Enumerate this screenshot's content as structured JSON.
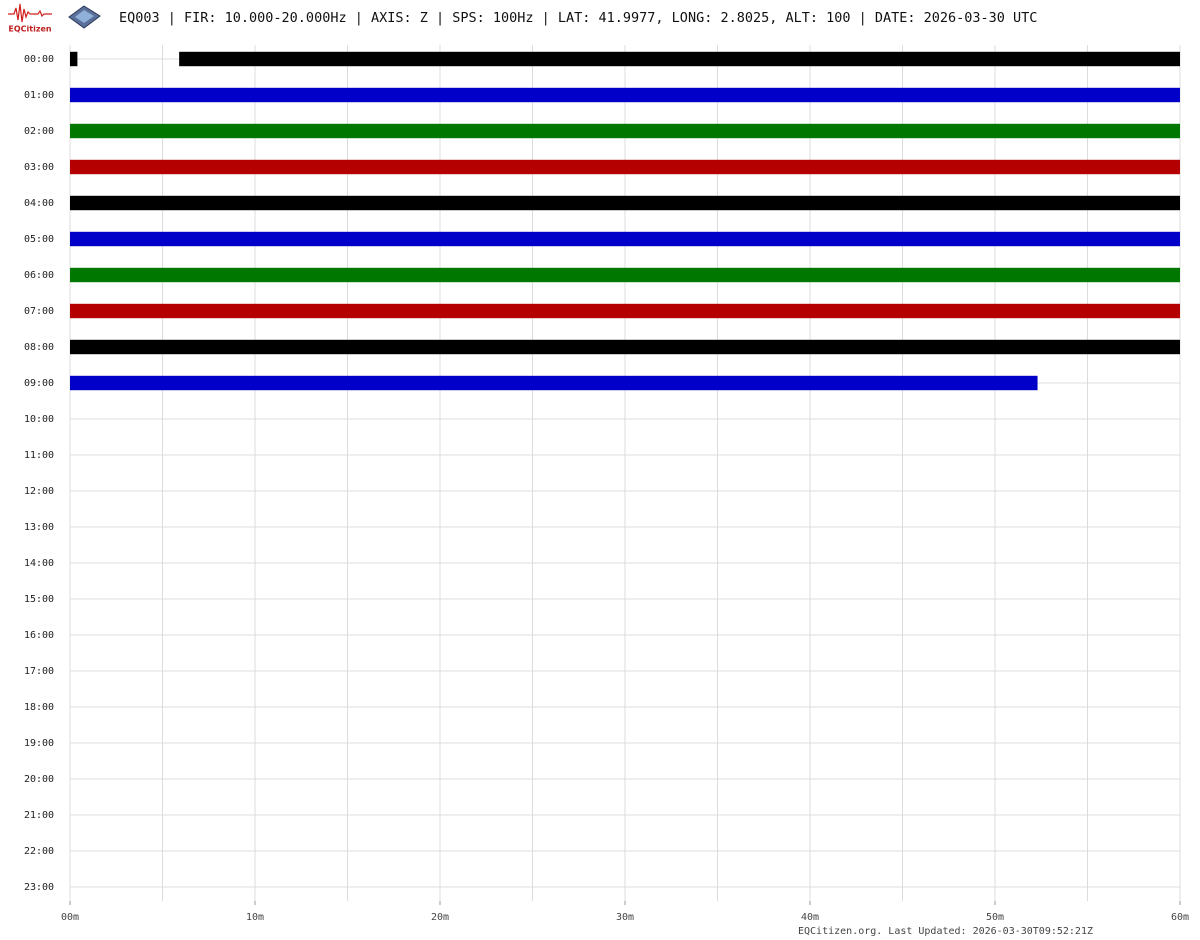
{
  "header": {
    "logo_text": "EQCitizen",
    "title": "EQ003 | FIR: 10.000-20.000Hz | AXIS: Z | SPS: 100Hz | LAT: 41.9977, LONG: 2.8025, ALT: 100 | DATE: 2026-03-30 UTC"
  },
  "chart_data": {
    "type": "helicorder",
    "categories": [
      "00:00",
      "01:00",
      "02:00",
      "03:00",
      "04:00",
      "05:00",
      "06:00",
      "07:00",
      "08:00",
      "09:00",
      "10:00",
      "11:00",
      "12:00",
      "13:00",
      "14:00",
      "15:00",
      "16:00",
      "17:00",
      "18:00",
      "19:00",
      "20:00",
      "21:00",
      "22:00",
      "23:00"
    ],
    "segments": [
      [
        [
          0,
          0.4
        ],
        [
          5.9,
          60
        ]
      ],
      [
        [
          0,
          60
        ]
      ],
      [
        [
          0,
          60
        ]
      ],
      [
        [
          0,
          60
        ]
      ],
      [
        [
          0,
          60
        ]
      ],
      [
        [
          0,
          60
        ]
      ],
      [
        [
          0,
          60
        ]
      ],
      [
        [
          0,
          60
        ]
      ],
      [
        [
          0,
          60
        ]
      ],
      [
        [
          0,
          52.3
        ]
      ],
      null,
      null,
      null,
      null,
      null,
      null,
      null,
      null,
      null,
      null,
      null,
      null,
      null,
      null
    ],
    "color_cycle": [
      "#000000",
      "#0000c8",
      "#007800",
      "#b40000"
    ],
    "amplitude": 0.2,
    "xlim": [
      0,
      60
    ],
    "xticks": [
      {
        "value": 0,
        "label": "00m"
      },
      {
        "value": 10,
        "label": "10m"
      },
      {
        "value": 20,
        "label": "20m"
      },
      {
        "value": 30,
        "label": "30m"
      },
      {
        "value": 40,
        "label": "40m"
      },
      {
        "value": 50,
        "label": "50m"
      },
      {
        "value": 60,
        "label": "60m"
      }
    ],
    "xgrid": [
      0,
      5,
      10,
      15,
      20,
      25,
      30,
      35,
      40,
      45,
      50,
      55,
      60
    ],
    "grid": true
  },
  "footer": "EQCitizen.org. Last Updated: 2026-03-30T09:52:21Z"
}
